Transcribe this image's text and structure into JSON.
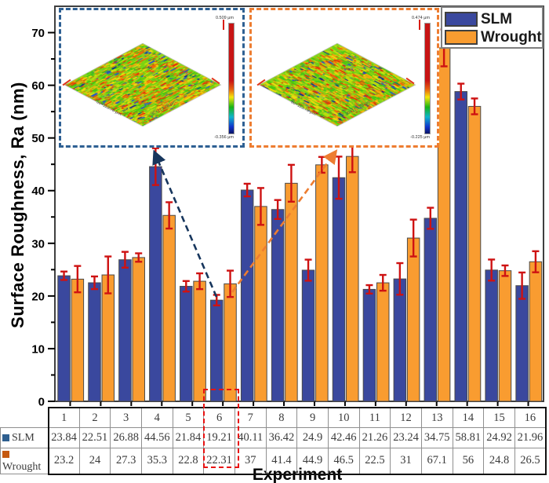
{
  "chart_data": {
    "type": "bar",
    "title": "",
    "xlabel": "Experiment",
    "ylabel": "Surface Roughness, Ra (nm)",
    "categories": [
      "1",
      "2",
      "3",
      "4",
      "5",
      "6",
      "7",
      "8",
      "9",
      "10",
      "11",
      "12",
      "13",
      "14",
      "15",
      "16"
    ],
    "series": [
      {
        "name": "SLM",
        "color": "#3A489E",
        "values": [
          23.84,
          22.51,
          26.88,
          44.56,
          21.84,
          19.21,
          40.11,
          36.42,
          24.9,
          42.46,
          21.26,
          23.24,
          34.75,
          58.81,
          24.92,
          21.96
        ],
        "errors": [
          0.8,
          1.2,
          1.5,
          3.5,
          1.0,
          1.0,
          1.2,
          1.8,
          2.0,
          4.0,
          0.8,
          3.0,
          2.0,
          1.5,
          2.0,
          2.5
        ]
      },
      {
        "name": "Wrought",
        "color": "#F99C30",
        "values": [
          23.2,
          24,
          27.3,
          35.3,
          22.8,
          22.31,
          37,
          41.4,
          44.9,
          46.5,
          22.5,
          31,
          67.1,
          56,
          24.8,
          26.5
        ],
        "errors": [
          2.5,
          3.5,
          0.8,
          2.5,
          1.5,
          2.5,
          3.5,
          3.5,
          1.5,
          3.0,
          1.5,
          3.5,
          3.5,
          1.5,
          1.0,
          2.0
        ]
      }
    ],
    "ylim": [
      0,
      75
    ],
    "yticks": [
      0,
      10,
      20,
      30,
      40,
      50,
      60,
      70
    ],
    "minor_tick_step": 5,
    "error_bar_color": "#CE1212",
    "grid": false,
    "legend_position": "top-right",
    "highlighted_category": "6"
  },
  "table": {
    "column_headers": [
      "1",
      "2",
      "3",
      "4",
      "5",
      "6",
      "7",
      "8",
      "9",
      "10",
      "11",
      "12",
      "13",
      "14",
      "15",
      "16"
    ],
    "row_headers": [
      "SLM",
      "Wrought"
    ],
    "marker_colors": [
      "#2E5F8F",
      "#C55A11"
    ],
    "rows": [
      [
        "23.84",
        "22.51",
        "26.88",
        "44.56",
        "21.84",
        "19.21",
        "40.11",
        "36.42",
        "24.9",
        "42.46",
        "21.26",
        "23.24",
        "34.75",
        "58.81",
        "24.92",
        "21.96"
      ],
      [
        "23.2",
        "24",
        "27.3",
        "35.3",
        "22.8",
        "22.31",
        "37",
        "41.4",
        "44.9",
        "46.5",
        "22.5",
        "31",
        "67.1",
        "56",
        "24.8",
        "26.5"
      ]
    ]
  },
  "insets": [
    {
      "name": "slm-surface-topography",
      "border_color": "#2E6093",
      "scale_top": "0.509 μm",
      "scale_bottom": "-0.356 μm",
      "axis_left": "50×113.78 μm",
      "axis_right": "30×113.78 μm"
    },
    {
      "name": "wrought-surface-topography",
      "border_color": "#ED7D31",
      "scale_top": "0.474 μm",
      "scale_bottom": "-0.225 μm",
      "axis_left": "50×113.78 μm",
      "axis_right": "30×113.78 μm"
    }
  ],
  "annotations": {
    "highlight_experiment": "6",
    "arrow_colors": {
      "slm": "#17365D",
      "wrought": "#ED7D31"
    }
  }
}
